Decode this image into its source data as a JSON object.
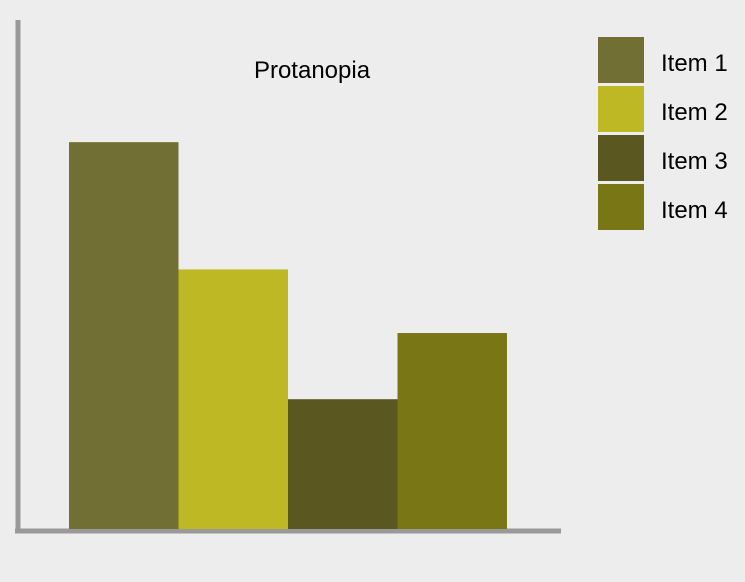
{
  "chart_data": {
    "type": "bar",
    "title": "Protanopia",
    "categories": [
      "Item 1",
      "Item 2",
      "Item 3",
      "Item 4"
    ],
    "values": [
      76,
      51,
      25.5,
      38.5
    ],
    "ylim": [
      0,
      100
    ],
    "colors": [
      "#716f33",
      "#bdb824",
      "#5a5820",
      "#797616"
    ],
    "xlabel": "",
    "ylabel": "",
    "grid": false,
    "legend_position": "top-right",
    "axis_color": "#999999",
    "background": "#ededed"
  }
}
